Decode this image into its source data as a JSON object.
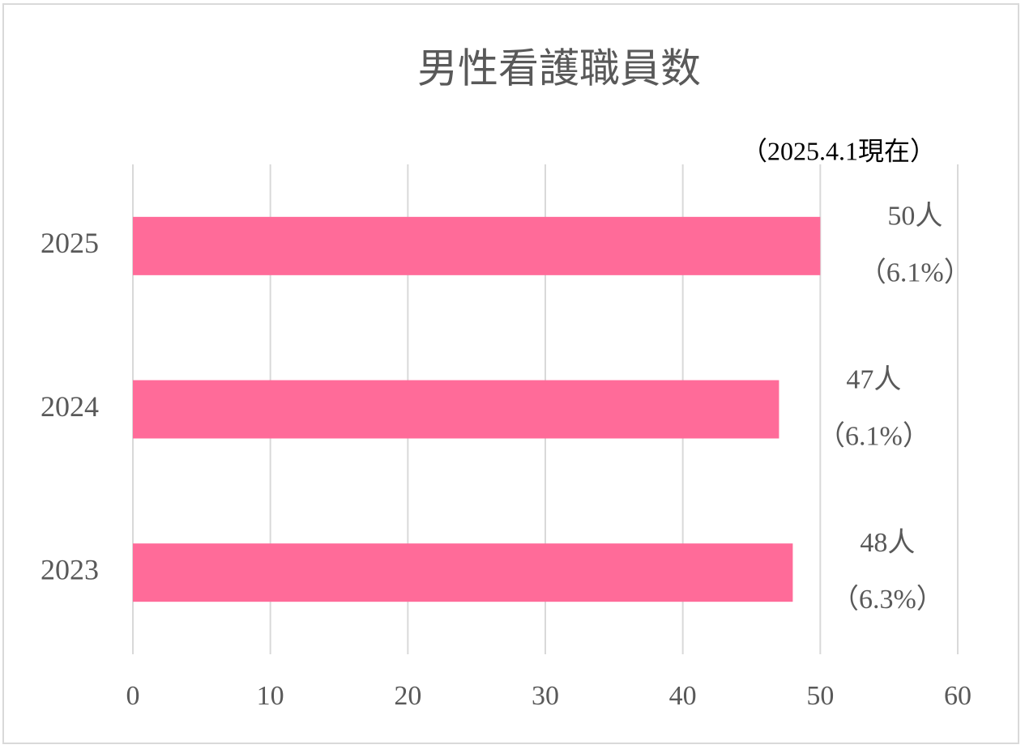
{
  "chart_data": {
    "type": "bar",
    "orientation": "horizontal",
    "title": "男性看護職員数",
    "annotation": "（2025.4.1現在）",
    "categories": [
      "2025",
      "2024",
      "2023"
    ],
    "values": [
      50,
      47,
      48
    ],
    "value_labels": [
      "50人",
      "47人",
      "48人"
    ],
    "share_labels": [
      "（6.1%）",
      "（6.1%）",
      "（6.3%）"
    ],
    "color": "#ff6b99",
    "xlim": [
      0,
      60
    ],
    "xticks": [
      0,
      10,
      20,
      30,
      40,
      50,
      60
    ],
    "grid": true
  }
}
